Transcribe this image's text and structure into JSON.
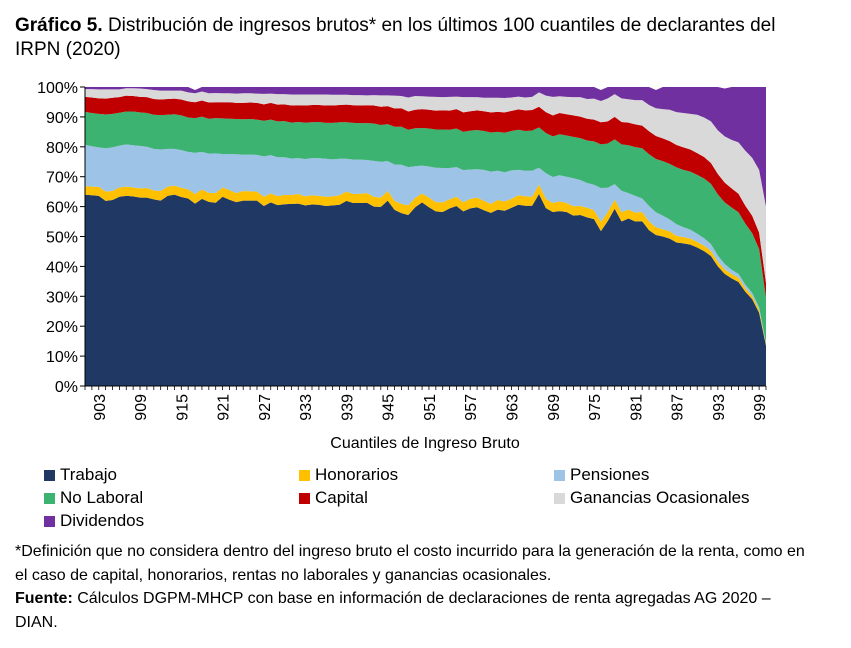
{
  "title": {
    "prefix": "Gráfico 5.",
    "text": "Distribución de ingresos brutos* en los últimos 100 cuantiles de declarantes del IRPN (2020)"
  },
  "notes": {
    "definition": "*Definición que no considera dentro del ingreso bruto el costo incurrido para la generación de la renta, como en el caso de capital, honorarios, rentas no laborales y ganancias ocasionales.",
    "source_label": "Fuente:",
    "source_text": "Cálculos DGPM-MHCP con base en información de declaraciones de renta agregadas AG 2020 – DIAN."
  },
  "chart_data": {
    "type": "area",
    "stacked": true,
    "xlabel": "Cuantiles de Ingreso Bruto",
    "ylabel": "",
    "x": [
      901,
      902,
      903,
      904,
      905,
      906,
      907,
      908,
      909,
      910,
      911,
      912,
      913,
      914,
      915,
      916,
      917,
      918,
      919,
      920,
      921,
      922,
      923,
      924,
      925,
      926,
      927,
      928,
      929,
      930,
      931,
      932,
      933,
      934,
      935,
      936,
      937,
      938,
      939,
      940,
      941,
      942,
      943,
      944,
      945,
      946,
      947,
      948,
      949,
      950,
      951,
      952,
      953,
      954,
      955,
      956,
      957,
      958,
      959,
      960,
      961,
      962,
      963,
      964,
      965,
      966,
      967,
      968,
      969,
      970,
      971,
      972,
      973,
      974,
      975,
      976,
      977,
      978,
      979,
      980,
      981,
      982,
      983,
      984,
      985,
      986,
      987,
      988,
      989,
      990,
      991,
      992,
      993,
      994,
      995,
      996,
      997,
      998,
      999,
      1000
    ],
    "x_tick_labels": [
      "903",
      "909",
      "915",
      "921",
      "927",
      "933",
      "939",
      "945",
      "951",
      "957",
      "963",
      "969",
      "975",
      "981",
      "987",
      "993",
      "999"
    ],
    "ylim": [
      0,
      100
    ],
    "y_tick_labels": [
      "0%",
      "10%",
      "20%",
      "30%",
      "40%",
      "50%",
      "60%",
      "70%",
      "80%",
      "90%",
      "100%"
    ],
    "grid": false,
    "legend_position": "bottom",
    "series": [
      {
        "name": "Trabajo",
        "color": "#1f3864",
        "values": [
          64.0,
          63.8,
          63.6,
          61.9,
          62.2,
          63.3,
          63.6,
          63.4,
          63.0,
          63.0,
          62.4,
          62.0,
          63.6,
          64.0,
          63.2,
          62.7,
          61.0,
          62.6,
          61.6,
          61.3,
          63.3,
          62.3,
          61.5,
          62.0,
          62.0,
          62.0,
          60.2,
          61.4,
          60.5,
          60.8,
          60.9,
          61.0,
          60.4,
          60.7,
          60.6,
          60.2,
          60.4,
          60.6,
          61.9,
          61.2,
          61.2,
          61.3,
          60.0,
          59.9,
          62.0,
          58.9,
          57.8,
          57.2,
          59.8,
          61.4,
          59.8,
          58.4,
          58.2,
          59.4,
          60.2,
          58.4,
          59.4,
          59.8,
          58.8,
          57.9,
          59.0,
          58.6,
          59.6,
          60.6,
          60.3,
          60.3,
          64.2,
          59.5,
          58.2,
          58.5,
          58.2,
          57.0,
          57.2,
          56.4,
          55.8,
          51.8,
          55.2,
          59.3,
          55.0,
          56.0,
          55.0,
          55.1,
          52.1,
          50.5,
          50.0,
          49.3,
          48.0,
          47.7,
          47.3,
          46.3,
          45.1,
          43.5,
          40.0,
          37.5,
          36.0,
          34.8,
          31.5,
          29.0,
          24.5,
          13.5
        ]
      },
      {
        "name": "Honorarios",
        "color": "#ffc000",
        "values": [
          2.8,
          2.9,
          3.0,
          3.1,
          3.0,
          3.1,
          3.1,
          3.0,
          3.1,
          3.2,
          3.0,
          3.2,
          3.1,
          3.0,
          3.1,
          3.0,
          3.2,
          3.1,
          3.0,
          3.2,
          3.1,
          3.2,
          3.0,
          3.2,
          3.1,
          3.0,
          3.1,
          3.0,
          3.0,
          3.1,
          3.0,
          3.2,
          3.0,
          3.1,
          3.0,
          3.1,
          3.0,
          3.2,
          3.1,
          3.0,
          3.1,
          3.2,
          3.3,
          3.1,
          3.2,
          3.0,
          3.1,
          3.2,
          3.1,
          3.0,
          3.2,
          3.1,
          3.2,
          3.0,
          3.1,
          3.0,
          3.2,
          3.2,
          3.1,
          3.0,
          3.2,
          3.1,
          3.0,
          3.2,
          3.1,
          3.0,
          3.2,
          3.1,
          3.0,
          3.2,
          3.0,
          3.1,
          3.0,
          3.2,
          3.0,
          3.1,
          3.0,
          3.0,
          3.1,
          3.0,
          3.0,
          3.1,
          2.9,
          2.6,
          2.4,
          2.4,
          2.2,
          2.1,
          2.0,
          1.9,
          1.8,
          1.7,
          1.6,
          1.5,
          1.4,
          1.4,
          1.2,
          1.1,
          1.0,
          0.5
        ]
      },
      {
        "name": "Pensiones",
        "color": "#9dc3e6",
        "values": [
          13.9,
          13.5,
          13.2,
          14.5,
          14.6,
          14.0,
          14.1,
          14.1,
          14.2,
          13.8,
          13.9,
          13.9,
          12.6,
          12.3,
          12.6,
          12.6,
          13.8,
          12.6,
          13.1,
          13.3,
          11.2,
          12.1,
          13.0,
          12.2,
          12.3,
          12.3,
          13.5,
          12.8,
          13.0,
          12.6,
          12.2,
          12.0,
          12.5,
          12.4,
          12.6,
          12.7,
          12.4,
          12.2,
          11.0,
          11.5,
          11.4,
          11.1,
          12.0,
          12.0,
          10.0,
          12.2,
          13.1,
          12.8,
          10.6,
          9.3,
          10.4,
          11.5,
          11.5,
          10.5,
          9.9,
          10.8,
          9.8,
          9.5,
          10.4,
          10.8,
          9.8,
          9.8,
          9.5,
          8.5,
          8.6,
          8.7,
          5.6,
          8.6,
          8.7,
          8.8,
          8.8,
          9.4,
          8.7,
          8.3,
          8.5,
          11.3,
          8.1,
          5.2,
          7.2,
          5.5,
          5.6,
          4.5,
          5.2,
          5.0,
          4.6,
          4.0,
          3.9,
          3.3,
          3.0,
          2.7,
          2.5,
          2.3,
          2.0,
          1.8,
          1.5,
          1.3,
          1.2,
          1.0,
          0.8,
          0.5
        ]
      },
      {
        "name": "No Laboral",
        "color": "#3cb371",
        "values": [
          11.0,
          11.1,
          11.2,
          11.3,
          11.2,
          11.0,
          11.0,
          11.3,
          11.2,
          11.3,
          11.4,
          11.5,
          11.4,
          11.6,
          11.6,
          11.5,
          11.6,
          11.8,
          11.7,
          11.8,
          11.9,
          11.8,
          11.8,
          11.8,
          11.9,
          11.8,
          11.9,
          11.9,
          12.0,
          12.1,
          12.0,
          12.1,
          12.2,
          12.0,
          12.1,
          12.0,
          12.2,
          12.2,
          12.2,
          12.3,
          12.2,
          12.3,
          12.5,
          12.3,
          12.4,
          12.6,
          12.7,
          12.5,
          12.7,
          12.6,
          12.7,
          12.8,
          12.9,
          12.8,
          12.9,
          12.8,
          13.0,
          13.1,
          13.0,
          13.1,
          13.0,
          13.2,
          13.2,
          13.4,
          13.3,
          13.4,
          13.5,
          13.4,
          13.6,
          13.7,
          13.8,
          13.8,
          14.0,
          14.2,
          14.5,
          14.6,
          14.8,
          15.0,
          15.5,
          16.0,
          16.3,
          16.8,
          17.3,
          17.8,
          18.2,
          18.6,
          19.0,
          19.2,
          19.4,
          19.7,
          20.0,
          20.1,
          20.5,
          20.6,
          20.8,
          20.6,
          20.4,
          20.0,
          19.5,
          15.0
        ]
      },
      {
        "name": "Capital",
        "color": "#c00000",
        "values": [
          5.0,
          5.2,
          5.2,
          5.3,
          5.4,
          5.2,
          5.3,
          5.2,
          5.2,
          5.3,
          5.3,
          5.2,
          5.3,
          5.2,
          5.3,
          5.4,
          5.3,
          5.4,
          5.4,
          5.3,
          5.4,
          5.5,
          5.4,
          5.5,
          5.5,
          5.6,
          5.5,
          5.6,
          5.6,
          5.6,
          5.7,
          5.6,
          5.7,
          5.8,
          5.7,
          5.8,
          5.8,
          5.8,
          5.9,
          5.9,
          5.9,
          6.0,
          6.0,
          6.1,
          6.0,
          6.1,
          6.2,
          6.1,
          6.2,
          6.3,
          6.3,
          6.3,
          6.4,
          6.4,
          6.5,
          6.5,
          6.5,
          6.6,
          6.6,
          6.7,
          6.7,
          6.8,
          6.7,
          6.8,
          6.9,
          6.9,
          6.9,
          7.0,
          7.0,
          7.1,
          7.1,
          7.2,
          7.2,
          7.3,
          7.3,
          7.4,
          7.4,
          7.5,
          7.5,
          7.6,
          7.6,
          7.6,
          7.7,
          7.7,
          7.6,
          7.6,
          7.5,
          7.5,
          7.4,
          7.3,
          7.2,
          7.0,
          6.8,
          6.6,
          6.4,
          6.2,
          6.0,
          5.8,
          5.5,
          5.0
        ]
      },
      {
        "name": "Ganancias Ocasionales",
        "color": "#d9d9d9",
        "values": [
          2.6,
          2.8,
          3.0,
          3.1,
          2.8,
          2.6,
          2.5,
          2.6,
          2.8,
          2.7,
          3.0,
          3.0,
          2.8,
          2.7,
          3.0,
          3.0,
          3.0,
          3.0,
          3.1,
          3.1,
          3.0,
          3.0,
          3.1,
          3.2,
          3.1,
          3.1,
          3.5,
          3.1,
          3.5,
          3.4,
          3.7,
          3.6,
          3.7,
          3.5,
          3.5,
          3.7,
          3.6,
          3.4,
          3.3,
          3.4,
          3.5,
          3.3,
          3.5,
          3.8,
          3.6,
          4.3,
          4.1,
          4.7,
          4.6,
          4.3,
          4.4,
          4.6,
          4.4,
          4.6,
          4.2,
          5.1,
          4.7,
          4.4,
          4.5,
          4.9,
          4.7,
          4.8,
          4.5,
          4.3,
          4.3,
          4.4,
          4.8,
          5.5,
          6.2,
          5.6,
          5.8,
          6.1,
          6.5,
          6.6,
          7.0,
          7.1,
          7.7,
          7.6,
          7.9,
          7.8,
          8.1,
          8.5,
          8.8,
          9.3,
          9.8,
          10.5,
          11.0,
          11.5,
          11.9,
          12.8,
          13.2,
          13.9,
          14.6,
          15.5,
          16.2,
          17.2,
          18.4,
          19.4,
          21.0,
          25.5
        ]
      },
      {
        "name": "Dividendos",
        "color": "#7030a0",
        "values": [
          0.7,
          0.7,
          0.8,
          0.8,
          0.8,
          0.8,
          0.4,
          0.4,
          0.5,
          0.7,
          1.0,
          1.2,
          1.2,
          1.2,
          1.2,
          1.8,
          1.1,
          1.5,
          2.1,
          2.0,
          2.1,
          2.1,
          2.2,
          2.1,
          2.1,
          2.2,
          2.3,
          2.2,
          2.4,
          2.4,
          2.5,
          2.5,
          2.5,
          2.5,
          2.5,
          2.5,
          2.6,
          2.6,
          2.6,
          2.7,
          2.7,
          2.8,
          2.7,
          2.8,
          2.8,
          2.9,
          3.0,
          3.5,
          3.0,
          3.1,
          3.2,
          3.3,
          3.4,
          3.3,
          3.2,
          3.4,
          3.4,
          3.4,
          3.6,
          3.6,
          3.6,
          3.7,
          3.5,
          3.2,
          3.5,
          3.3,
          1.8,
          2.9,
          3.3,
          3.1,
          3.3,
          3.4,
          3.4,
          4.0,
          3.9,
          3.7,
          3.8,
          4.4,
          4.8,
          6.1,
          6.4,
          6.4,
          6.0,
          6.1,
          7.4,
          7.6,
          8.4,
          8.7,
          9.0,
          9.3,
          10.2,
          11.5,
          14.5,
          16.0,
          17.7,
          18.5,
          21.3,
          23.7,
          27.7,
          40.0
        ]
      }
    ]
  }
}
